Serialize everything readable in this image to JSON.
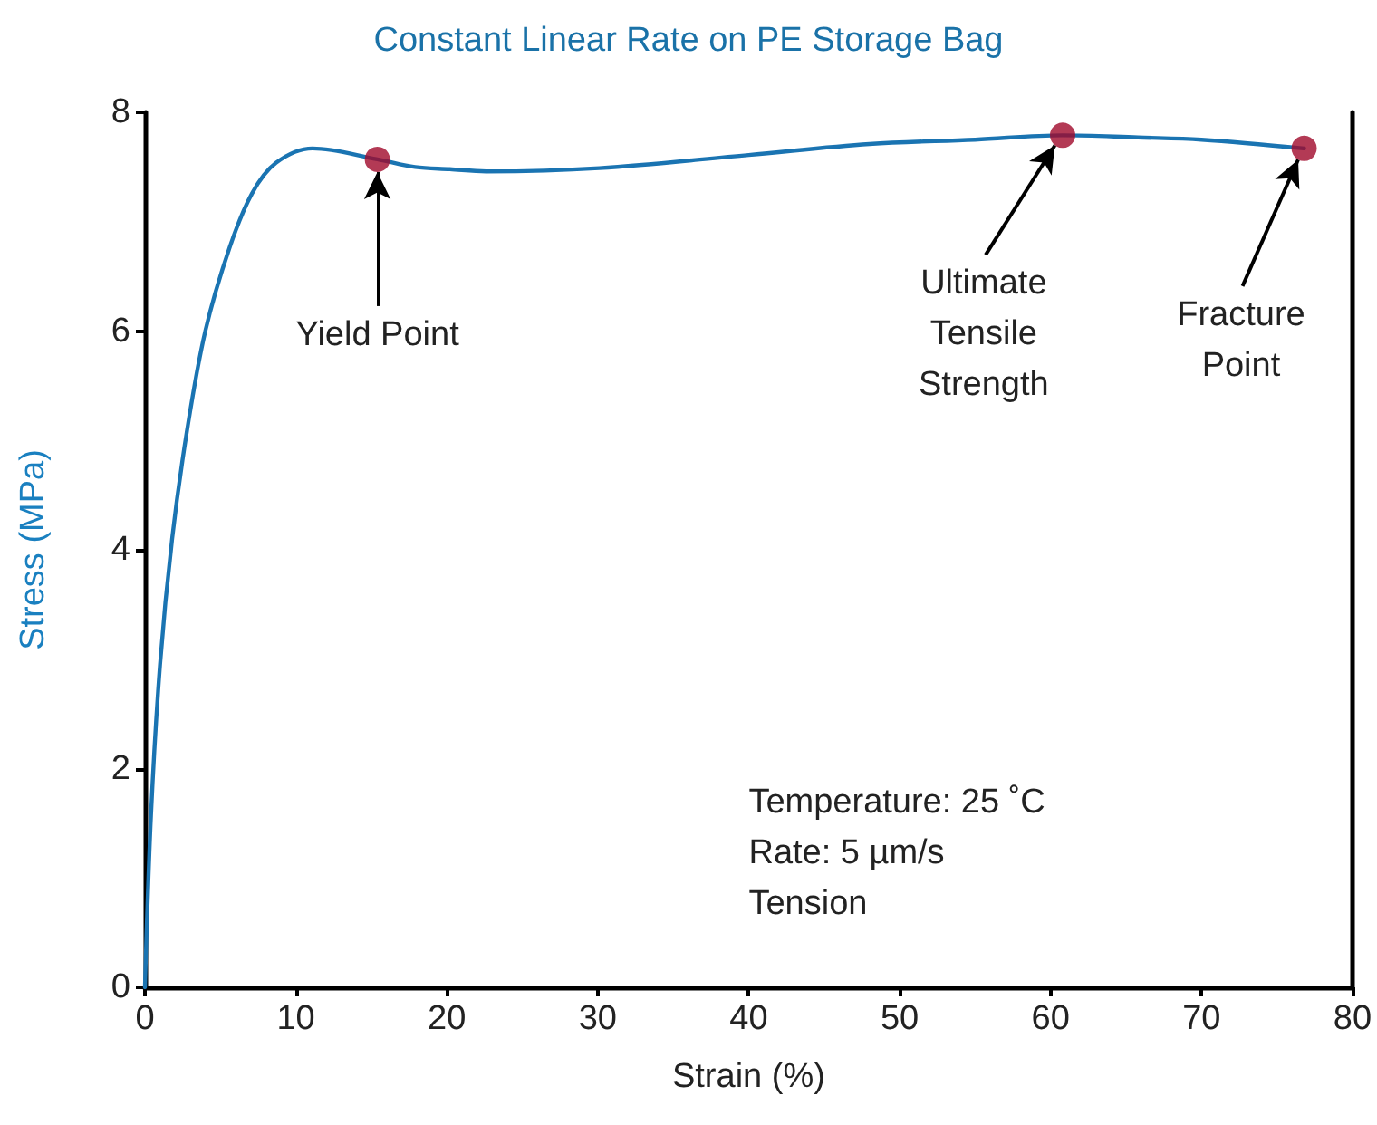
{
  "chart_data": {
    "type": "line",
    "title": "Constant Linear Rate on PE Storage Bag",
    "xlabel": "Strain (%)",
    "ylabel": "Stress (MPa)",
    "xlim": [
      0,
      80
    ],
    "xticks": [
      0,
      10,
      20,
      30,
      40,
      50,
      60,
      70,
      80
    ],
    "ylim": [
      0,
      8
    ],
    "yticks": [
      0,
      2,
      4,
      6,
      8
    ],
    "grid": false,
    "series": [
      {
        "color": "#1a74b2",
        "marker": "none",
        "x": [
          0,
          0.4,
          1.0,
          1.8,
          2.8,
          4.0,
          5.6,
          7.1,
          8.7,
          11.1,
          15.4,
          17.9,
          20.2,
          22.6,
          30.1,
          40,
          48,
          55,
          60.8,
          65.8,
          70,
          76.8
        ],
        "values": [
          0,
          1.57,
          2.95,
          4.1,
          5.1,
          6.0,
          6.76,
          7.26,
          7.54,
          7.67,
          7.57,
          7.5,
          7.48,
          7.46,
          7.49,
          7.61,
          7.71,
          7.75,
          7.79,
          7.77,
          7.75,
          7.67
        ]
      },
      {
        "type": "scatter",
        "color": "#a0092b",
        "marker": "circle",
        "x": [
          15.4,
          60.8,
          76.8
        ],
        "values": [
          7.57,
          7.79,
          7.67
        ]
      }
    ],
    "annotations": [
      {
        "text": "Yield Point",
        "x": 15.4,
        "y": 7.57
      },
      {
        "text": "Ultimate\nTensile\nStrength",
        "x": 60.8,
        "y": 7.79
      },
      {
        "text": "Fracture\nPoint",
        "x": 76.8,
        "y": 7.67
      },
      "Temperature: 25 ˚C\nRate: 5 µm/s\nTension"
    ]
  }
}
